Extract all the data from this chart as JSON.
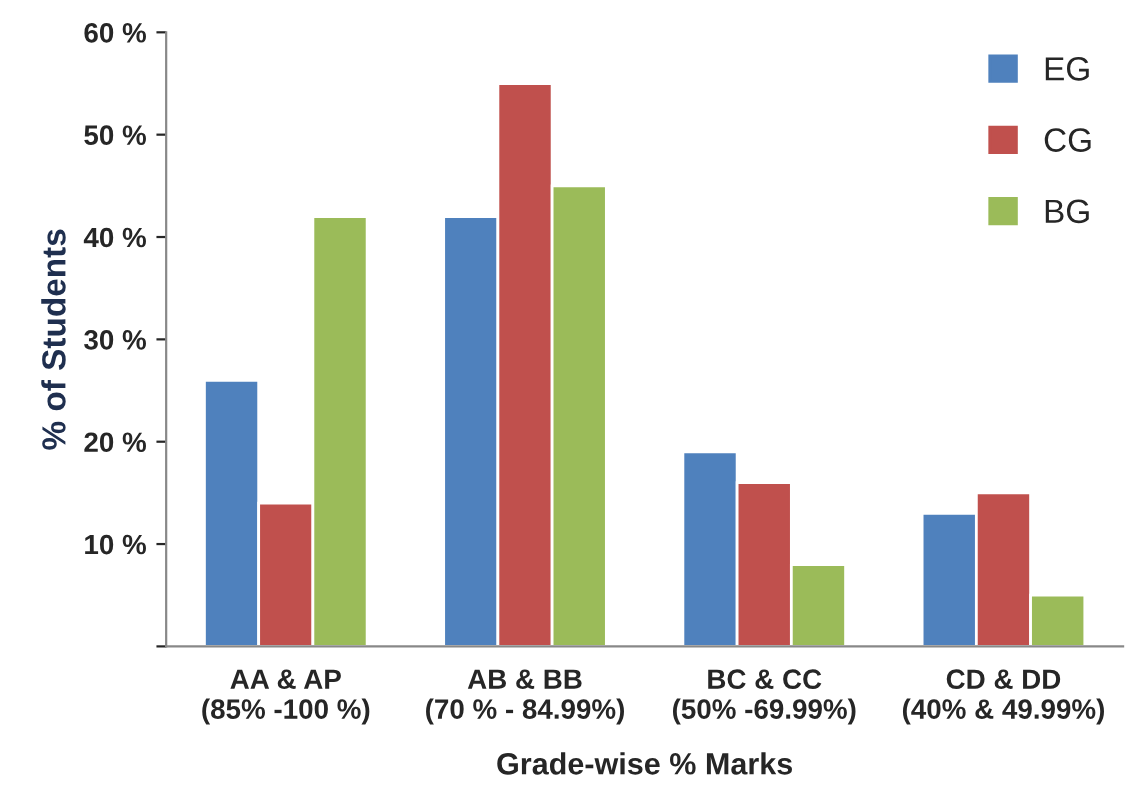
{
  "chart_data": {
    "type": "bar",
    "categories": [
      "AA & AP\n(85% -100 %)",
      "AB & BB\n(70 % - 84.99%)",
      "BC & CC\n(50% -69.99%)",
      "CD & DD\n(40% & 49.99%)"
    ],
    "series": [
      {
        "name": "EG",
        "color": "#4f81bd",
        "values": [
          26,
          42,
          19,
          13
        ]
      },
      {
        "name": "CG",
        "color": "#c0504d",
        "values": [
          14,
          55,
          16,
          15
        ]
      },
      {
        "name": "BG",
        "color": "#9bbb59",
        "values": [
          42,
          45,
          8,
          5
        ]
      }
    ],
    "xlabel": "Grade-wise % Marks",
    "ylabel": "% of Students",
    "ylim": [
      0,
      60
    ],
    "yticks": [
      {
        "value": 0,
        "label": null
      },
      {
        "value": 10,
        "label": "10 %"
      },
      {
        "value": 20,
        "label": "20 %"
      },
      {
        "value": 30,
        "label": "30 %"
      },
      {
        "value": 40,
        "label": "40 %"
      },
      {
        "value": 50,
        "label": "50 %"
      },
      {
        "value": 60,
        "label": "60 %"
      }
    ],
    "grid": false,
    "legend": "right"
  }
}
